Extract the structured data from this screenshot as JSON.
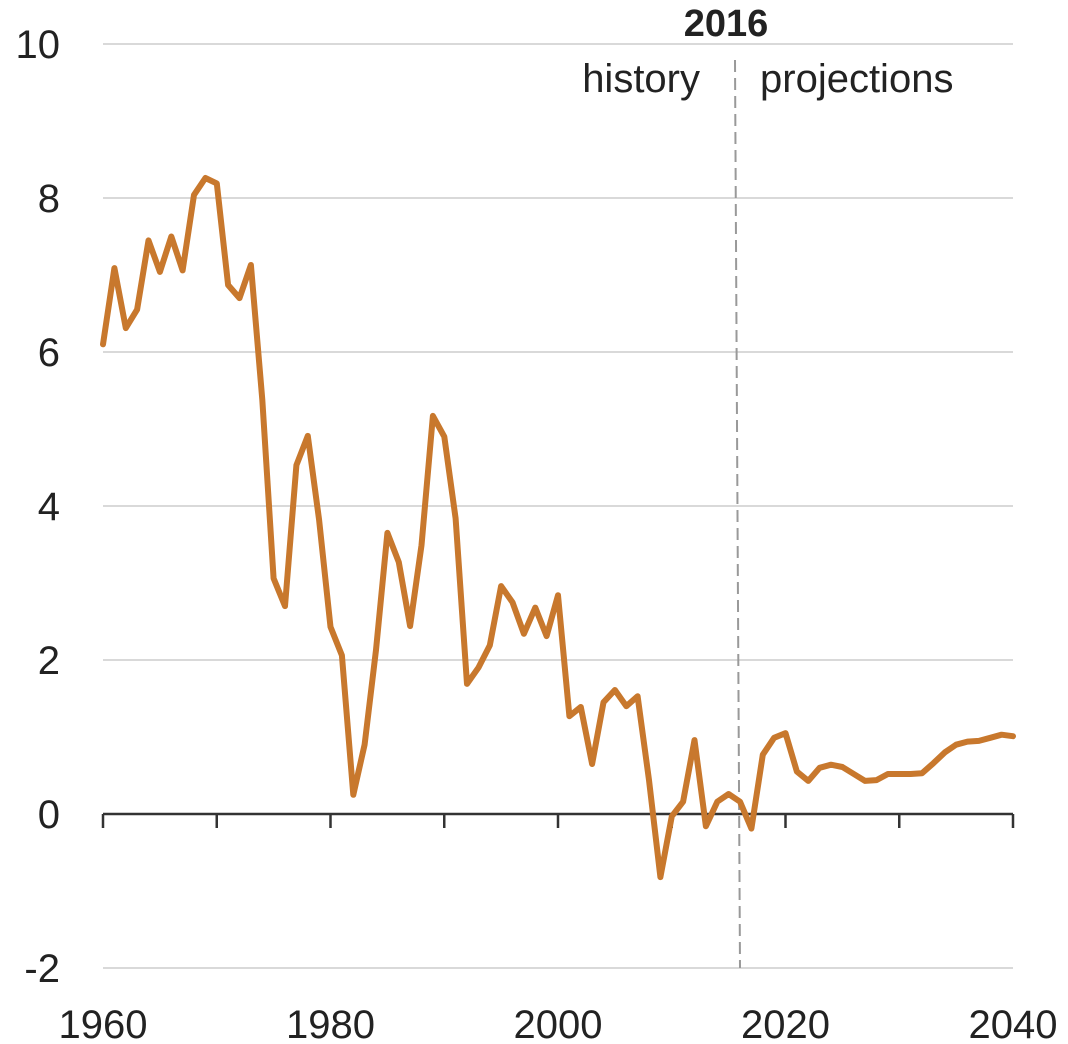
{
  "chart_data": {
    "type": "line",
    "x": [
      1960,
      1961,
      1962,
      1963,
      1964,
      1965,
      1966,
      1967,
      1968,
      1969,
      1970,
      1971,
      1972,
      1973,
      1974,
      1975,
      1976,
      1977,
      1978,
      1979,
      1980,
      1981,
      1982,
      1983,
      1984,
      1985,
      1986,
      1987,
      1988,
      1989,
      1990,
      1991,
      1992,
      1993,
      1994,
      1995,
      1996,
      1997,
      1998,
      1999,
      2000,
      2001,
      2002,
      2003,
      2004,
      2005,
      2006,
      2007,
      2008,
      2009,
      2010,
      2011,
      2012,
      2013,
      2014,
      2015,
      2016,
      2017,
      2018,
      2019,
      2020,
      2021,
      2022,
      2023,
      2024,
      2025,
      2026,
      2027,
      2028,
      2029,
      2030,
      2031,
      2032,
      2033,
      2034,
      2035,
      2036,
      2037,
      2038,
      2039,
      2040
    ],
    "values": [
      6.1,
      7.09,
      6.31,
      6.55,
      7.45,
      7.04,
      7.5,
      7.06,
      8.04,
      8.26,
      8.19,
      6.87,
      6.7,
      7.13,
      5.38,
      3.06,
      2.7,
      4.53,
      4.91,
      3.82,
      2.43,
      2.06,
      0.25,
      0.9,
      2.13,
      3.65,
      3.27,
      2.44,
      3.49,
      5.17,
      4.9,
      3.84,
      1.69,
      1.9,
      2.19,
      2.96,
      2.75,
      2.34,
      2.68,
      2.31,
      2.84,
      1.27,
      1.39,
      0.65,
      1.45,
      1.61,
      1.4,
      1.53,
      0.44,
      -0.82,
      -0.03,
      0.16,
      0.96,
      -0.16,
      0.16,
      0.26,
      0.16,
      -0.19,
      0.77,
      0.99,
      1.05,
      0.55,
      0.43,
      0.6,
      0.64,
      0.61,
      0.52,
      0.43,
      0.44,
      0.52,
      0.52,
      0.52,
      0.53,
      0.66,
      0.8,
      0.9,
      0.94,
      0.95,
      0.99,
      1.03,
      1.01
    ],
    "color": "#c8782d",
    "xlim": [
      1960,
      2040
    ],
    "xticks": [
      1960,
      1980,
      2000,
      2020,
      2040
    ],
    "x_minor_ticks": [
      1970,
      1990,
      2010,
      2030
    ],
    "ylim": [
      -2,
      10
    ],
    "yticks": [
      -2,
      0,
      2,
      4,
      6,
      8,
      10
    ],
    "grid": true,
    "divider": {
      "value": 2016,
      "left_label": "history",
      "right_label": "projections"
    }
  }
}
